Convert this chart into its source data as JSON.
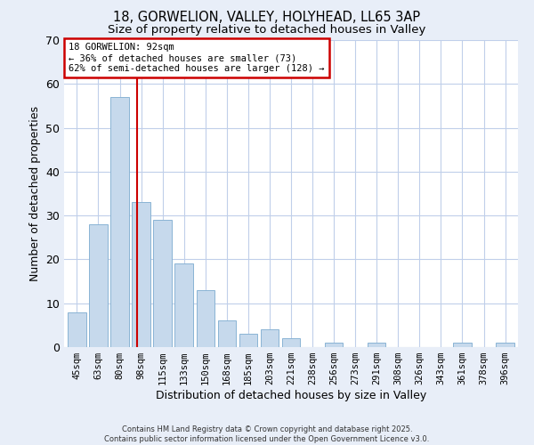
{
  "title": "18, GORWELION, VALLEY, HOLYHEAD, LL65 3AP",
  "subtitle": "Size of property relative to detached houses in Valley",
  "xlabel": "Distribution of detached houses by size in Valley",
  "ylabel": "Number of detached properties",
  "bar_labels": [
    "45sqm",
    "63sqm",
    "80sqm",
    "98sqm",
    "115sqm",
    "133sqm",
    "150sqm",
    "168sqm",
    "185sqm",
    "203sqm",
    "221sqm",
    "238sqm",
    "256sqm",
    "273sqm",
    "291sqm",
    "308sqm",
    "326sqm",
    "343sqm",
    "361sqm",
    "378sqm",
    "396sqm"
  ],
  "bar_values": [
    8,
    28,
    57,
    33,
    29,
    19,
    13,
    6,
    3,
    4,
    2,
    0,
    1,
    0,
    1,
    0,
    0,
    0,
    1,
    0,
    1
  ],
  "bar_color": "#c6d9ec",
  "bar_edge_color": "#8ab4d4",
  "vline_x": 2.82,
  "vline_color": "#cc0000",
  "ylim": [
    0,
    70
  ],
  "yticks": [
    0,
    10,
    20,
    30,
    40,
    50,
    60,
    70
  ],
  "annotation_title": "18 GORWELION: 92sqm",
  "annotation_line1": "← 36% of detached houses are smaller (73)",
  "annotation_line2": "62% of semi-detached houses are larger (128) →",
  "annotation_box_facecolor": "#ffffff",
  "annotation_box_edgecolor": "#cc0000",
  "footer_line1": "Contains HM Land Registry data © Crown copyright and database right 2025.",
  "footer_line2": "Contains public sector information licensed under the Open Government Licence v3.0.",
  "background_color": "#e8eef8",
  "plot_background": "#ffffff",
  "grid_color": "#c0cfea"
}
